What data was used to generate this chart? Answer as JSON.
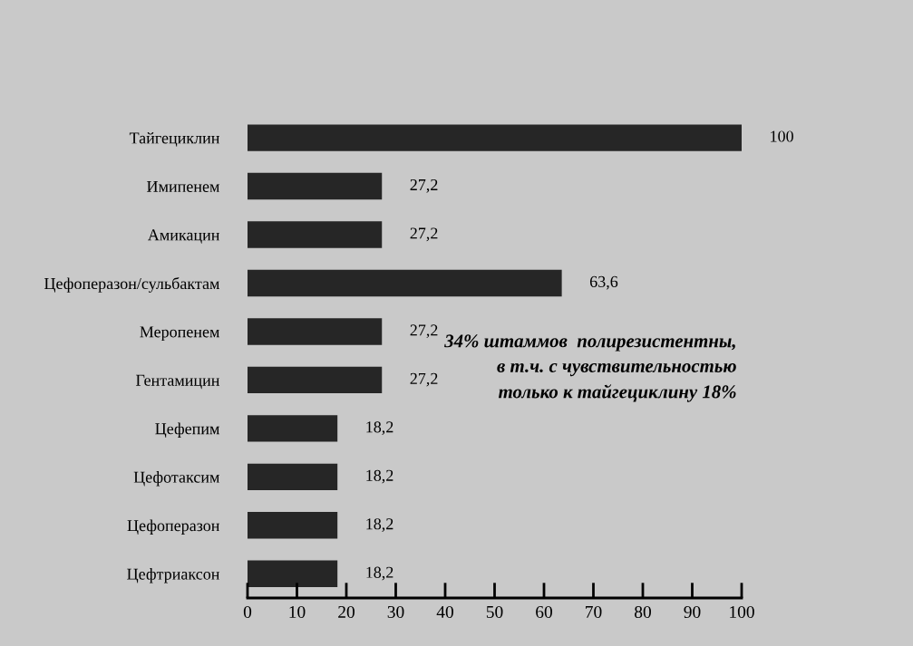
{
  "chart_data": {
    "type": "bar",
    "orientation": "horizontal",
    "categories": [
      "Тайгециклин",
      "Имипенем",
      "Амикацин",
      "Цефоперазон/сульбактам",
      "Меропенем",
      "Гентамицин",
      "Цефепим",
      "Цефотаксим",
      "Цефоперазон",
      "Цефтриаксон"
    ],
    "values": [
      100,
      27.2,
      27.2,
      63.6,
      27.2,
      27.2,
      18.2,
      18.2,
      18.2,
      18.2
    ],
    "value_labels": [
      "100",
      "27,2",
      "27,2",
      "63,6",
      "27,2",
      "27,2",
      "18,2",
      "18,2",
      "18,2",
      "18,2"
    ],
    "color": "#262626",
    "xlim": [
      0,
      100
    ],
    "xticks": [
      0,
      10,
      20,
      30,
      40,
      50,
      60,
      70,
      80,
      90,
      100
    ],
    "grid": false,
    "annotations": [
      "34% штаммов  полирезистентны,\nв т.ч. с чувствительностью\nтолько к тайгециклину 18%"
    ]
  }
}
